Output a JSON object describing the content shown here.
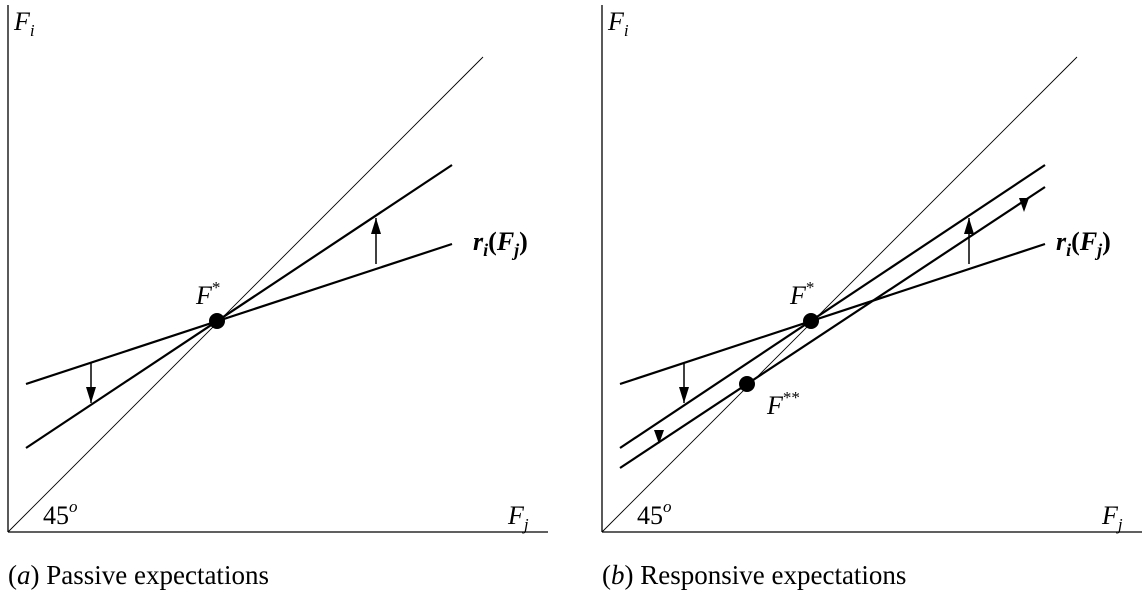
{
  "panels": [
    {
      "id": "a",
      "caption_letter": "a",
      "caption_text": "Passive expectations",
      "y_axis_label": "F",
      "y_axis_sub": "i",
      "x_axis_label": "F",
      "x_axis_sub": "j",
      "angle_label": "45",
      "angle_sup": "o",
      "eq_label": "F",
      "eq_sup": "*",
      "curve_label_r": "r",
      "curve_label_sub": "i",
      "curve_label_F": "F",
      "curve_label_Fsub": "j"
    },
    {
      "id": "b",
      "caption_letter": "b",
      "caption_text": "Responsive expectations",
      "y_axis_label": "F",
      "y_axis_sub": "i",
      "x_axis_label": "F",
      "x_axis_sub": "j",
      "angle_label": "45",
      "angle_sup": "o",
      "eq_label": "F",
      "eq_sup": "*",
      "eq2_label": "F",
      "eq2_sup": "**",
      "curve_label_r": "r",
      "curve_label_sub": "i",
      "curve_label_F": "F",
      "curve_label_Fsub": "j"
    }
  ]
}
